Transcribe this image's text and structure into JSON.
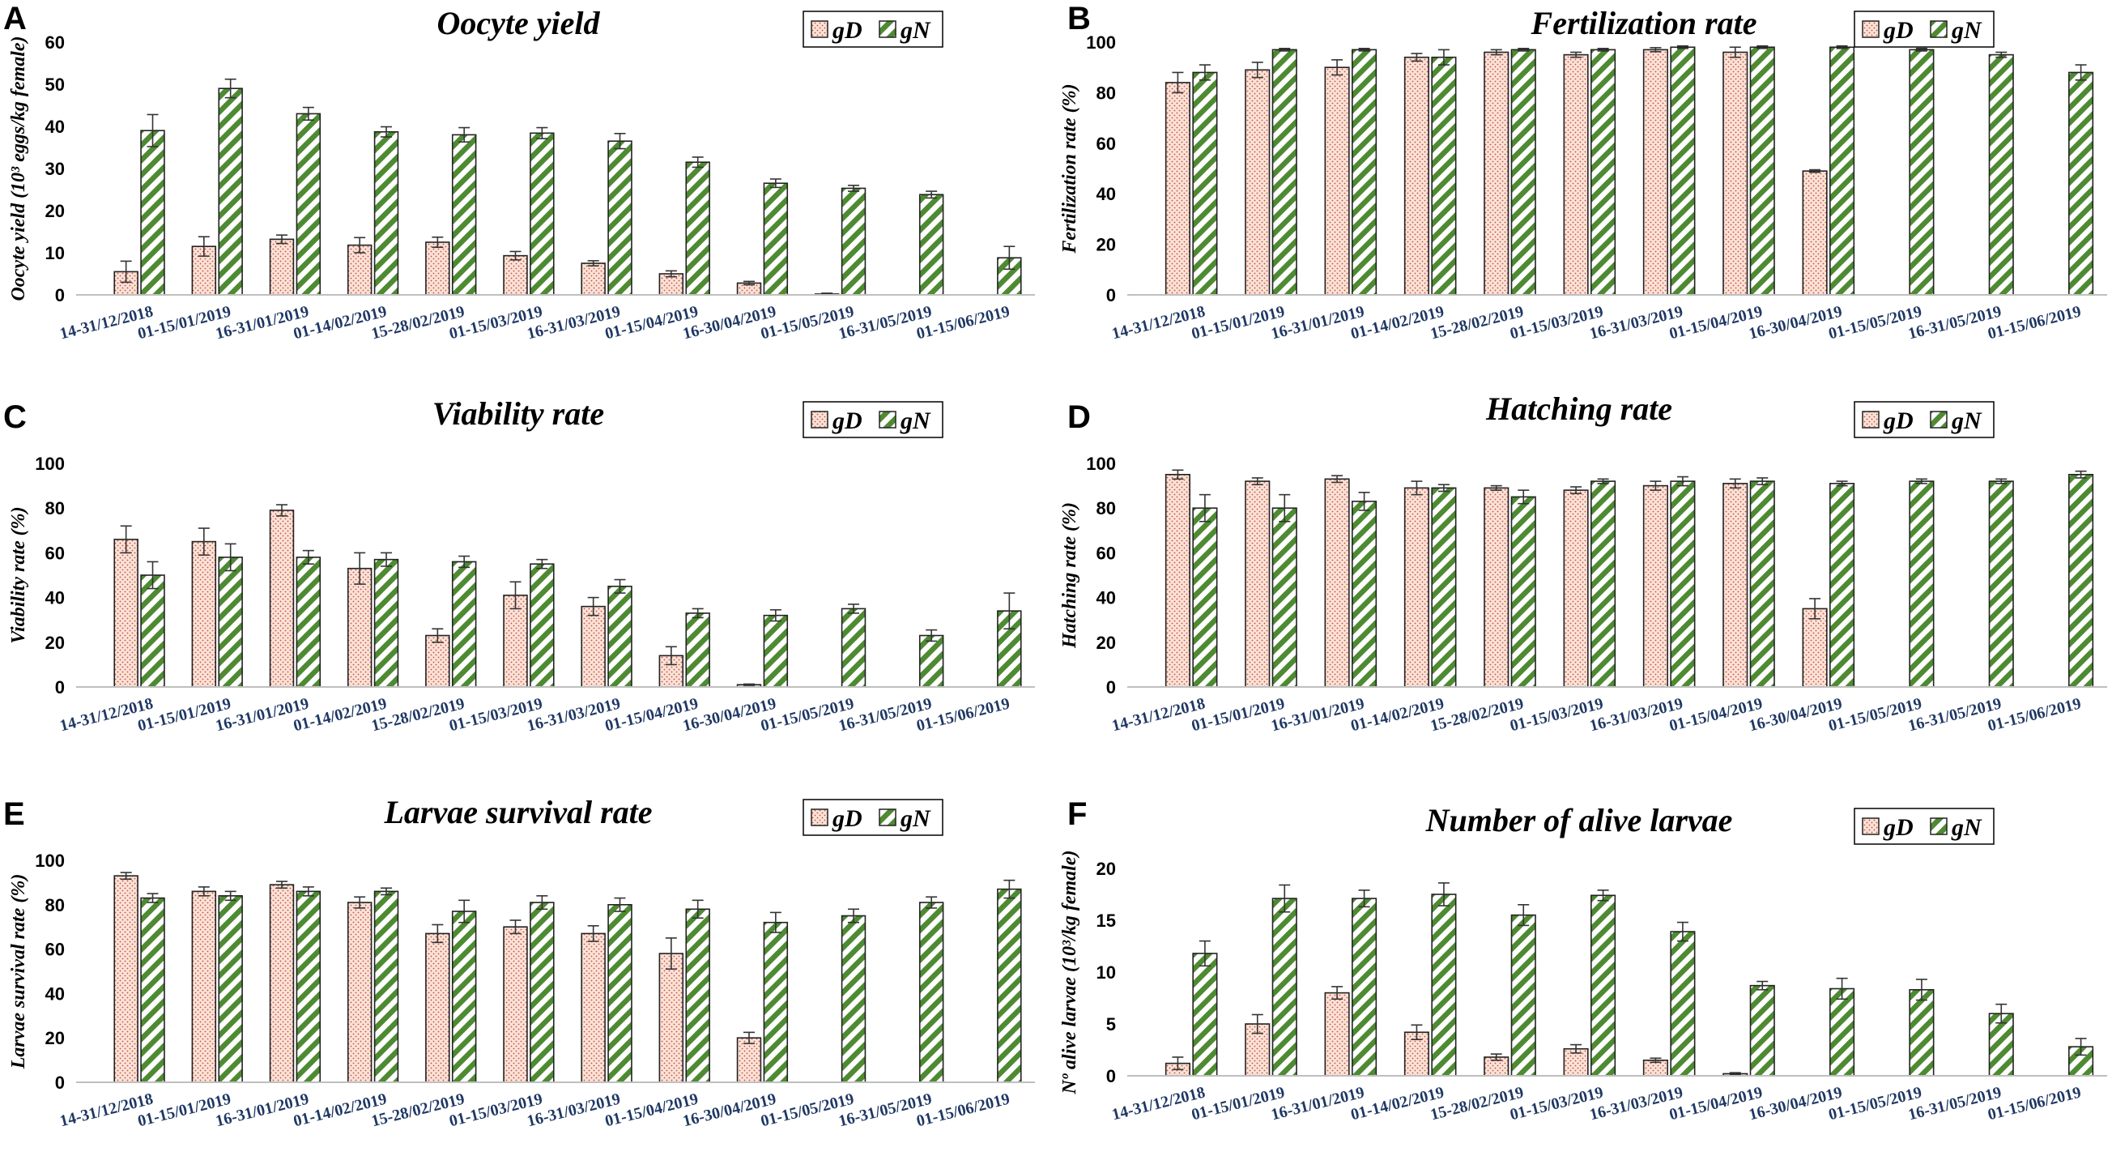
{
  "chart_data": [
    {
      "panel": "A",
      "type": "bar",
      "title": "Oocyte yield",
      "ylabel": "Oocyte yield (10³ eggs/kg female)",
      "xlabel": "",
      "ylim": [
        0,
        60
      ],
      "yticks": [
        0,
        10,
        20,
        30,
        40,
        50,
        60
      ],
      "categories": [
        "14-31/12/2018",
        "01-15/01/2019",
        "16-31/01/2019",
        "01-14/02/2019",
        "15-28/02/2019",
        "01-15/03/2019",
        "16-31/03/2019",
        "01-15/04/2019",
        "16-30/04/2019",
        "01-15/05/2019",
        "16-31/05/2019",
        "01-15/06/2019"
      ],
      "series": [
        {
          "name": "gD",
          "values": [
            5.5,
            11.5,
            13.2,
            11.8,
            12.5,
            9.3,
            7.5,
            5.0,
            2.8,
            0.2,
            0,
            0
          ],
          "errors": [
            2.5,
            2.3,
            1.0,
            1.8,
            1.2,
            1.0,
            0.6,
            0.7,
            0.4,
            0.2,
            0,
            0
          ]
        },
        {
          "name": "gN",
          "values": [
            39.0,
            49.0,
            43.0,
            38.7,
            38.0,
            38.4,
            36.5,
            31.5,
            26.5,
            25.3,
            23.8,
            8.8
          ],
          "errors": [
            3.8,
            2.2,
            1.5,
            1.2,
            1.7,
            1.3,
            1.8,
            1.2,
            1.0,
            0.7,
            0.8,
            2.7
          ]
        }
      ]
    },
    {
      "panel": "B",
      "type": "bar",
      "title": "Fertilization rate",
      "ylabel": "Fertilization rate (%)",
      "xlabel": "",
      "ylim": [
        0,
        100
      ],
      "yticks": [
        0,
        20,
        40,
        60,
        80,
        100
      ],
      "categories": [
        "14-31/12/2018",
        "01-15/01/2019",
        "16-31/01/2019",
        "01-14/02/2019",
        "15-28/02/2019",
        "01-15/03/2019",
        "16-31/03/2019",
        "01-15/04/2019",
        "16-30/04/2019",
        "01-15/05/2019",
        "16-31/05/2019",
        "01-15/06/2019"
      ],
      "series": [
        {
          "name": "gD",
          "values": [
            84,
            89,
            90,
            94,
            96,
            95,
            97,
            96,
            49,
            0,
            0,
            0
          ],
          "errors": [
            4,
            3,
            3,
            1.5,
            1,
            1,
            0.8,
            2,
            0.5,
            0,
            0,
            0
          ]
        },
        {
          "name": "gN",
          "values": [
            88,
            97,
            97,
            94,
            97,
            97,
            98,
            98,
            98,
            97,
            95,
            88
          ],
          "errors": [
            3,
            0.5,
            0.5,
            3,
            0.5,
            0.5,
            0.5,
            0.5,
            0.5,
            0.5,
            1,
            3
          ]
        }
      ]
    },
    {
      "panel": "C",
      "type": "bar",
      "title": "Viability rate",
      "ylabel": "Viability rate (%)",
      "xlabel": "",
      "ylim": [
        0,
        100
      ],
      "yticks": [
        0,
        20,
        40,
        60,
        80,
        100
      ],
      "categories": [
        "14-31/12/2018",
        "01-15/01/2019",
        "16-31/01/2019",
        "01-14/02/2019",
        "15-28/02/2019",
        "01-15/03/2019",
        "16-31/03/2019",
        "01-15/04/2019",
        "16-30/04/2019",
        "01-15/05/2019",
        "16-31/05/2019",
        "01-15/06/2019"
      ],
      "series": [
        {
          "name": "gD",
          "values": [
            66,
            65,
            79,
            53,
            23,
            41,
            36,
            14,
            1,
            0,
            0,
            0
          ],
          "errors": [
            6,
            6,
            2.5,
            7,
            3,
            6,
            4,
            4,
            0.3,
            0,
            0,
            0
          ]
        },
        {
          "name": "gN",
          "values": [
            50,
            58,
            58,
            57,
            56,
            55,
            45,
            33,
            32,
            35,
            23,
            34
          ],
          "errors": [
            6,
            6,
            3,
            3,
            2.5,
            2,
            3,
            2,
            2.5,
            2,
            2.5,
            8
          ]
        }
      ]
    },
    {
      "panel": "D",
      "type": "bar",
      "title": "Hatching rate",
      "ylabel": "Hatching rate (%)",
      "xlabel": "",
      "ylim": [
        0,
        100
      ],
      "yticks": [
        0,
        20,
        40,
        60,
        80,
        100
      ],
      "categories": [
        "14-31/12/2018",
        "01-15/01/2019",
        "16-31/01/2019",
        "01-14/02/2019",
        "15-28/02/2019",
        "01-15/03/2019",
        "16-31/03/2019",
        "01-15/04/2019",
        "16-30/04/2019",
        "01-15/05/2019",
        "16-31/05/2019",
        "01-15/06/2019"
      ],
      "series": [
        {
          "name": "gD",
          "values": [
            95,
            92,
            93,
            89,
            89,
            88,
            90,
            91,
            35,
            0,
            0,
            0
          ],
          "errors": [
            2,
            1.5,
            1.5,
            3,
            1,
            1.5,
            2,
            2,
            4.5,
            0,
            0,
            0
          ]
        },
        {
          "name": "gN",
          "values": [
            80,
            80,
            83,
            89,
            85,
            92,
            92,
            92,
            91,
            92,
            92,
            95
          ],
          "errors": [
            6,
            6,
            4,
            1.5,
            3,
            1,
            2,
            1.5,
            1,
            1,
            1,
            1.5
          ]
        }
      ]
    },
    {
      "panel": "E",
      "type": "bar",
      "title": "Larvae survival rate",
      "ylabel": "Larvae survival rate (%)",
      "xlabel": "",
      "ylim": [
        0,
        100
      ],
      "yticks": [
        0,
        20,
        40,
        60,
        80,
        100
      ],
      "categories": [
        "14-31/12/2018",
        "01-15/01/2019",
        "16-31/01/2019",
        "01-14/02/2019",
        "15-28/02/2019",
        "01-15/03/2019",
        "16-31/03/2019",
        "01-15/04/2019",
        "16-30/04/2019",
        "01-15/05/2019",
        "16-31/05/2019",
        "01-15/06/2019"
      ],
      "series": [
        {
          "name": "gD",
          "values": [
            93,
            86,
            89,
            81,
            67,
            70,
            67,
            58,
            20,
            0,
            0,
            0
          ],
          "errors": [
            1.5,
            2,
            1.5,
            2.5,
            4,
            3,
            3.5,
            7,
            2.5,
            0,
            0,
            0
          ]
        },
        {
          "name": "gN",
          "values": [
            83,
            84,
            86,
            86,
            77,
            81,
            80,
            78,
            72,
            75,
            81,
            87
          ],
          "errors": [
            2,
            2,
            2,
            1.5,
            5,
            3,
            3,
            4,
            4.5,
            3,
            2.5,
            4
          ]
        }
      ]
    },
    {
      "panel": "F",
      "type": "bar",
      "title": "Number of alive larvae",
      "ylabel": "Nº alive larvae (10³/kg female)",
      "xlabel": "",
      "ylim": [
        0,
        20
      ],
      "yticks": [
        0,
        5,
        10,
        15,
        20
      ],
      "categories": [
        "14-31/12/2018",
        "01-15/01/2019",
        "16-31/01/2019",
        "01-14/02/2019",
        "15-28/02/2019",
        "01-15/03/2019",
        "16-31/03/2019",
        "01-15/04/2019",
        "16-30/04/2019",
        "01-15/05/2019",
        "16-31/05/2019",
        "01-15/06/2019"
      ],
      "series": [
        {
          "name": "gD",
          "values": [
            1.2,
            5.0,
            8.0,
            4.2,
            1.8,
            2.6,
            1.5,
            0.2,
            0,
            0,
            0,
            0
          ],
          "errors": [
            0.6,
            0.9,
            0.6,
            0.7,
            0.3,
            0.4,
            0.2,
            0.1,
            0,
            0,
            0,
            0
          ]
        },
        {
          "name": "gN",
          "values": [
            11.8,
            17.1,
            17.1,
            17.5,
            15.5,
            17.4,
            13.9,
            8.7,
            8.4,
            8.3,
            6.0,
            2.8
          ],
          "errors": [
            1.2,
            1.3,
            0.8,
            1.1,
            1.0,
            0.5,
            0.9,
            0.4,
            1.0,
            1.0,
            0.9,
            0.8
          ]
        }
      ]
    }
  ],
  "colors": {
    "gD_fill": "#fbe2d5",
    "gD_dots": "#c0504d",
    "gN_fill": "#ffffff",
    "gN_stripe": "#4e8a32",
    "bar_stroke": "#222222",
    "tick_label": "#1f3864"
  }
}
